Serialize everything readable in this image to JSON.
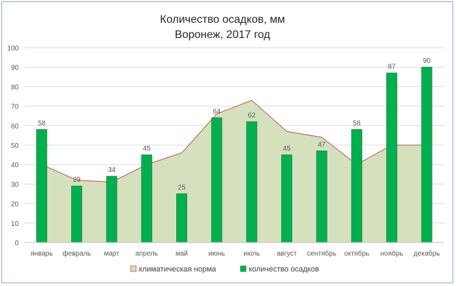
{
  "chart_data": {
    "type": "bar",
    "title": "Количество осадков, мм",
    "subtitle": "Воронеж, 2017 год",
    "categories": [
      "январь",
      "февраль",
      "март",
      "апрель",
      "май",
      "июнь",
      "июль",
      "август",
      "сентябрь",
      "октябрь",
      "ноябрь",
      "декабрь"
    ],
    "series": [
      {
        "name": "климатическая норма",
        "type": "area",
        "values": [
          40,
          32,
          31,
          40,
          46,
          66,
          73,
          57,
          54,
          40,
          50,
          50
        ],
        "fill": "#d5e0bf",
        "stroke": "#c0504d"
      },
      {
        "name": "количество осадков",
        "type": "bar",
        "values": [
          58,
          29,
          34,
          45,
          25,
          64,
          62,
          45,
          47,
          58,
          87,
          90
        ],
        "color": "#00b050",
        "stroke": "#2e7d32"
      }
    ],
    "ylim": [
      0,
      100
    ],
    "yticks": [
      "0",
      "10",
      "20",
      "30",
      "40",
      "50",
      "60",
      "70",
      "80",
      "90",
      "100"
    ],
    "grid": true,
    "legend": "bottom"
  }
}
